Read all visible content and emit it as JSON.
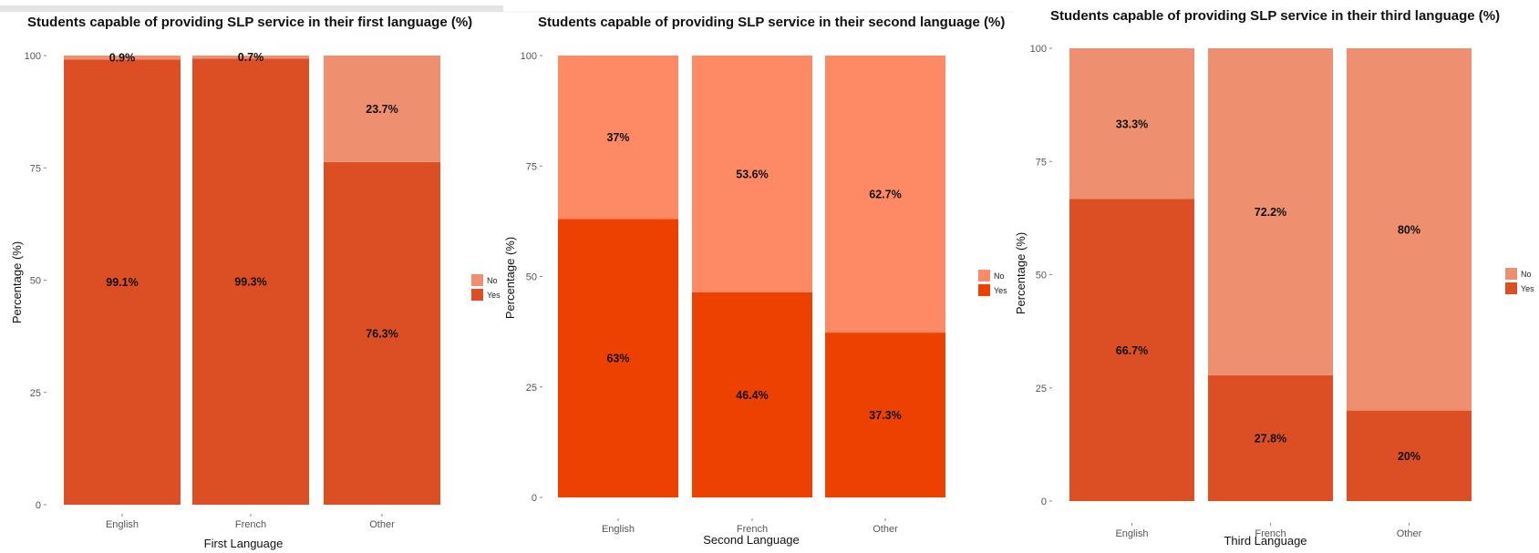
{
  "chart_data": [
    {
      "type": "bar",
      "stacked": true,
      "title": "Students capable of providing SLP service in their first language (%)",
      "xlabel": "First Language",
      "ylabel": "Percentage (%)",
      "ylim": [
        0,
        100
      ],
      "yticks": [
        0,
        25,
        50,
        75,
        100
      ],
      "categories": [
        "English",
        "French",
        "Other"
      ],
      "series": [
        {
          "name": "Yes",
          "values": [
            99.1,
            99.3,
            76.3
          ],
          "labels": [
            "99.1%",
            "99.3%",
            "76.3%"
          ],
          "color": "#dc4f24"
        },
        {
          "name": "No",
          "values": [
            0.9,
            0.7,
            23.7
          ],
          "labels": [
            "0.9%",
            "0.7%",
            "23.7%"
          ],
          "color": "#ee9070"
        }
      ],
      "legend": {
        "placement": "right",
        "entries": [
          "No",
          "Yes"
        ]
      }
    },
    {
      "type": "bar",
      "stacked": true,
      "title": "Students capable of providing SLP service in their second language (%)",
      "xlabel": "Second Language",
      "ylabel": "Percentage (%)",
      "ylim": [
        0,
        100
      ],
      "yticks": [
        0,
        25,
        50,
        75,
        100
      ],
      "categories": [
        "English",
        "French",
        "Other"
      ],
      "series": [
        {
          "name": "Yes",
          "values": [
            63,
            46.4,
            37.3
          ],
          "labels": [
            "63%",
            "46.4%",
            "37.3%"
          ],
          "color": "#ec4100"
        },
        {
          "name": "No",
          "values": [
            37,
            53.6,
            62.7
          ],
          "labels": [
            "37%",
            "53.6%",
            "62.7%"
          ],
          "color": "#fd8a65"
        }
      ],
      "legend": {
        "placement": "right",
        "entries": [
          "No",
          "Yes"
        ]
      }
    },
    {
      "type": "bar",
      "stacked": true,
      "title": "Students capable of providing SLP service in their third language (%)",
      "xlabel": "Third Language",
      "ylabel": "Percentage (%)",
      "ylim": [
        0,
        100
      ],
      "yticks": [
        0,
        25,
        50,
        75,
        100
      ],
      "categories": [
        "English",
        "French",
        "Other"
      ],
      "series": [
        {
          "name": "Yes",
          "values": [
            66.7,
            27.8,
            20
          ],
          "labels": [
            "66.7%",
            "27.8%",
            "20%"
          ],
          "color": "#dc4f24"
        },
        {
          "name": "No",
          "values": [
            33.3,
            72.2,
            80
          ],
          "labels": [
            "33.3%",
            "72.2%",
            "80%"
          ],
          "color": "#ee9070"
        }
      ],
      "legend": {
        "placement": "right",
        "entries": [
          "No",
          "Yes"
        ]
      }
    }
  ]
}
